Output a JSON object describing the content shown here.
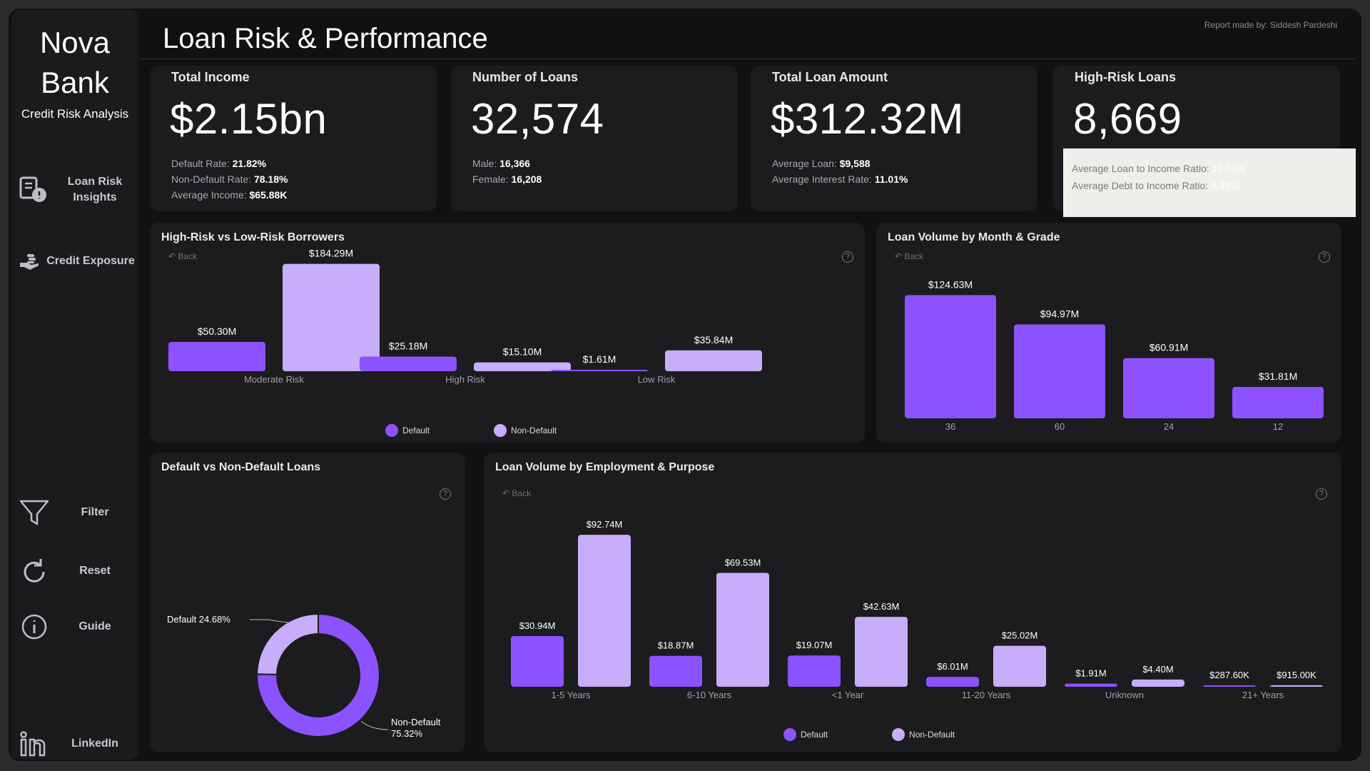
{
  "brand": {
    "name_line1": "Nova",
    "name_line2": "Bank",
    "subtitle": "Credit Risk Analysis"
  },
  "nav": {
    "loan_risk": {
      "line1": "Loan Risk",
      "line2": "Insights",
      "icon": "risk-insights-icon"
    },
    "credit_exposure": {
      "label": "Credit Exposure",
      "icon": "hand-coins-icon"
    },
    "filter": {
      "label": "Filter",
      "icon": "filter-icon"
    },
    "reset": {
      "label": "Reset",
      "icon": "reset-icon"
    },
    "guide": {
      "label": "Guide",
      "icon": "info-icon"
    },
    "linkedin": {
      "label": "LinkedIn",
      "icon": "linkedin-icon"
    }
  },
  "header": {
    "title": "Loan Risk & Performance",
    "credit": "Report made by: Siddesh Pardeshi"
  },
  "colors": {
    "default": "#8c52ff",
    "non_default": "#c8adfa",
    "background": "#111113",
    "card": "#1c1c1f"
  },
  "kpis": [
    {
      "title": "Total Income",
      "value": "$2.15bn",
      "lines": [
        {
          "label": "Default Rate:",
          "value": "21.82%"
        },
        {
          "label": "Non-Default Rate:",
          "value": "78.18%"
        },
        {
          "label": "Average Income:",
          "value": "$65.88K"
        }
      ]
    },
    {
      "title": "Number of Loans",
      "value": "32,574",
      "lines": [
        {
          "label": "Male:",
          "value": "16,366"
        },
        {
          "label": "Female:",
          "value": "16,208"
        }
      ]
    },
    {
      "title": "Total Loan Amount",
      "value": "$312.32M",
      "lines": [
        {
          "label": "Average Loan:",
          "value": "$9,588"
        },
        {
          "label": "Average Interest Rate:",
          "value": "11.01%"
        }
      ]
    },
    {
      "title": "High-Risk Loans",
      "value": "8,669",
      "lines": [
        {
          "label": "Average Loan to Income Ratio:",
          "value": "17.05%"
        },
        {
          "label": "Average Debt to Income Ratio:",
          "value": "6.35%"
        }
      ]
    }
  ],
  "back_label": "Back",
  "help_glyph": "?",
  "chart_data": [
    {
      "type": "bar",
      "title": "High-Risk vs Low-Risk Borrowers",
      "categories": [
        "Moderate Risk",
        "High Risk",
        "Low Risk"
      ],
      "series": [
        {
          "name": "Default",
          "values": [
            50.3,
            25.18,
            1.61
          ],
          "labels": [
            "$50.30M",
            "$25.18M",
            "$1.61M"
          ]
        },
        {
          "name": "Non-Default",
          "values": [
            184.29,
            15.1,
            35.84
          ],
          "labels": [
            "$184.29M",
            "$15.10M",
            "$35.84M"
          ]
        }
      ],
      "ylim": [
        0,
        190
      ],
      "legend": "bottom-center"
    },
    {
      "type": "bar",
      "title": "Loan Volume by Month & Grade",
      "categories": [
        "36",
        "60",
        "24",
        "12"
      ],
      "values": [
        124.63,
        94.97,
        60.91,
        31.81
      ],
      "labels": [
        "$124.63M",
        "$94.97M",
        "$60.91M",
        "$31.81M"
      ],
      "ylim": [
        0,
        130
      ]
    },
    {
      "type": "pie",
      "title": "Default vs Non-Default Loans",
      "categories": [
        "Default",
        "Non-Default"
      ],
      "values": [
        24.68,
        75.32
      ],
      "labels": [
        "Default 24.68%",
        "Non-Default",
        "75.32%"
      ]
    },
    {
      "type": "bar",
      "title": "Loan Volume by Employment & Purpose",
      "categories": [
        "1-5 Years",
        "6-10 Years",
        "<1 Year",
        "11-20 Years",
        "Unknown",
        "21+ Years"
      ],
      "category_labels": [
        "1-5 Years",
        "6-10 Years",
        "<1 Year",
        "11-20 Years",
        "Unknown",
        "21+ Years"
      ],
      "series": [
        {
          "name": "Default",
          "values": [
            30.94,
            18.87,
            19.07,
            6.01,
            1.91,
            0.2876
          ],
          "labels": [
            "$30.94M",
            "$18.87M",
            "$19.07M",
            "$6.01M",
            "$1.91M",
            "$287.60K"
          ]
        },
        {
          "name": "Non-Default",
          "values": [
            92.74,
            69.53,
            42.63,
            25.02,
            4.4,
            0.915
          ],
          "labels": [
            "$92.74M",
            "$69.53M",
            "$42.63M",
            "$25.02M",
            "$4.40M",
            "$915.00K"
          ]
        }
      ],
      "ylim": [
        0,
        95
      ],
      "legend": "bottom-center"
    }
  ]
}
